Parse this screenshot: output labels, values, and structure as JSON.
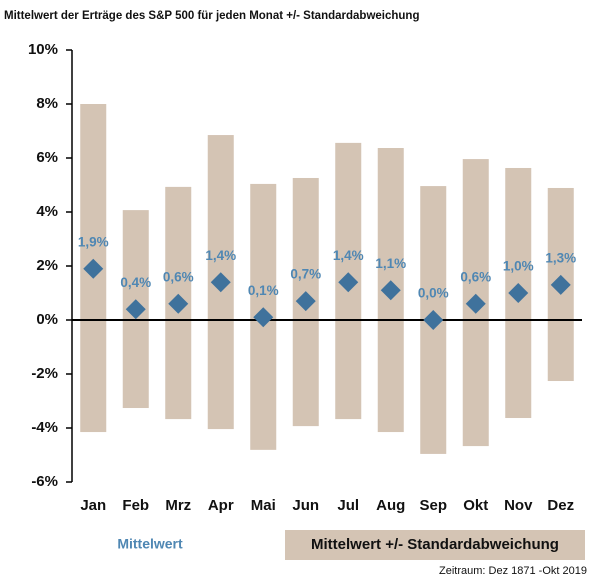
{
  "chart_data": {
    "type": "range_bar_with_mean",
    "title": "Mittelwert der Erträge des S&P 500 für jeden Monat  +/- Standardabweichung",
    "note": "Zeitraum: Dez 1871 -Okt 2019",
    "categories": [
      "Jan",
      "Feb",
      "Mrz",
      "Apr",
      "Mai",
      "Jun",
      "Jul",
      "Aug",
      "Sep",
      "Okt",
      "Nov",
      "Dez"
    ],
    "series": [
      {
        "name": "Mittelwert +/- Standardabweichung",
        "color": "#d4c4b4",
        "low": [
          -4.15,
          -3.26,
          -3.67,
          -4.04,
          -4.81,
          -3.93,
          -3.67,
          -4.15,
          -4.96,
          -4.67,
          -3.63,
          -2.26
        ],
        "high": [
          8.0,
          4.07,
          4.93,
          6.85,
          5.04,
          5.26,
          6.56,
          6.37,
          4.96,
          5.96,
          5.63,
          4.89
        ]
      },
      {
        "name": "Mittelwert",
        "color": "#3f729c",
        "label_color": "#4f87b3",
        "values": [
          1.9,
          0.4,
          0.6,
          1.4,
          0.1,
          0.7,
          1.4,
          1.1,
          0.0,
          0.6,
          1.0,
          1.3
        ],
        "value_labels": [
          "1,9%",
          "0,4%",
          "0,6%",
          "1,4%",
          "0,1%",
          "0,7%",
          "1,4%",
          "1,1%",
          "0,0%",
          "0,6%",
          "1,0%",
          "1,3%"
        ]
      }
    ],
    "ylim": [
      -6,
      10
    ],
    "yticks": [
      {
        "value": -6,
        "label": "-6%"
      },
      {
        "value": -4,
        "label": "-4%"
      },
      {
        "value": -2,
        "label": "-2%"
      },
      {
        "value": 0,
        "label": "0%"
      },
      {
        "value": 2,
        "label": "2%"
      },
      {
        "value": 4,
        "label": "4%"
      },
      {
        "value": 6,
        "label": "6%"
      },
      {
        "value": 8,
        "label": "8%"
      },
      {
        "value": 10,
        "label": "10%"
      }
    ]
  }
}
